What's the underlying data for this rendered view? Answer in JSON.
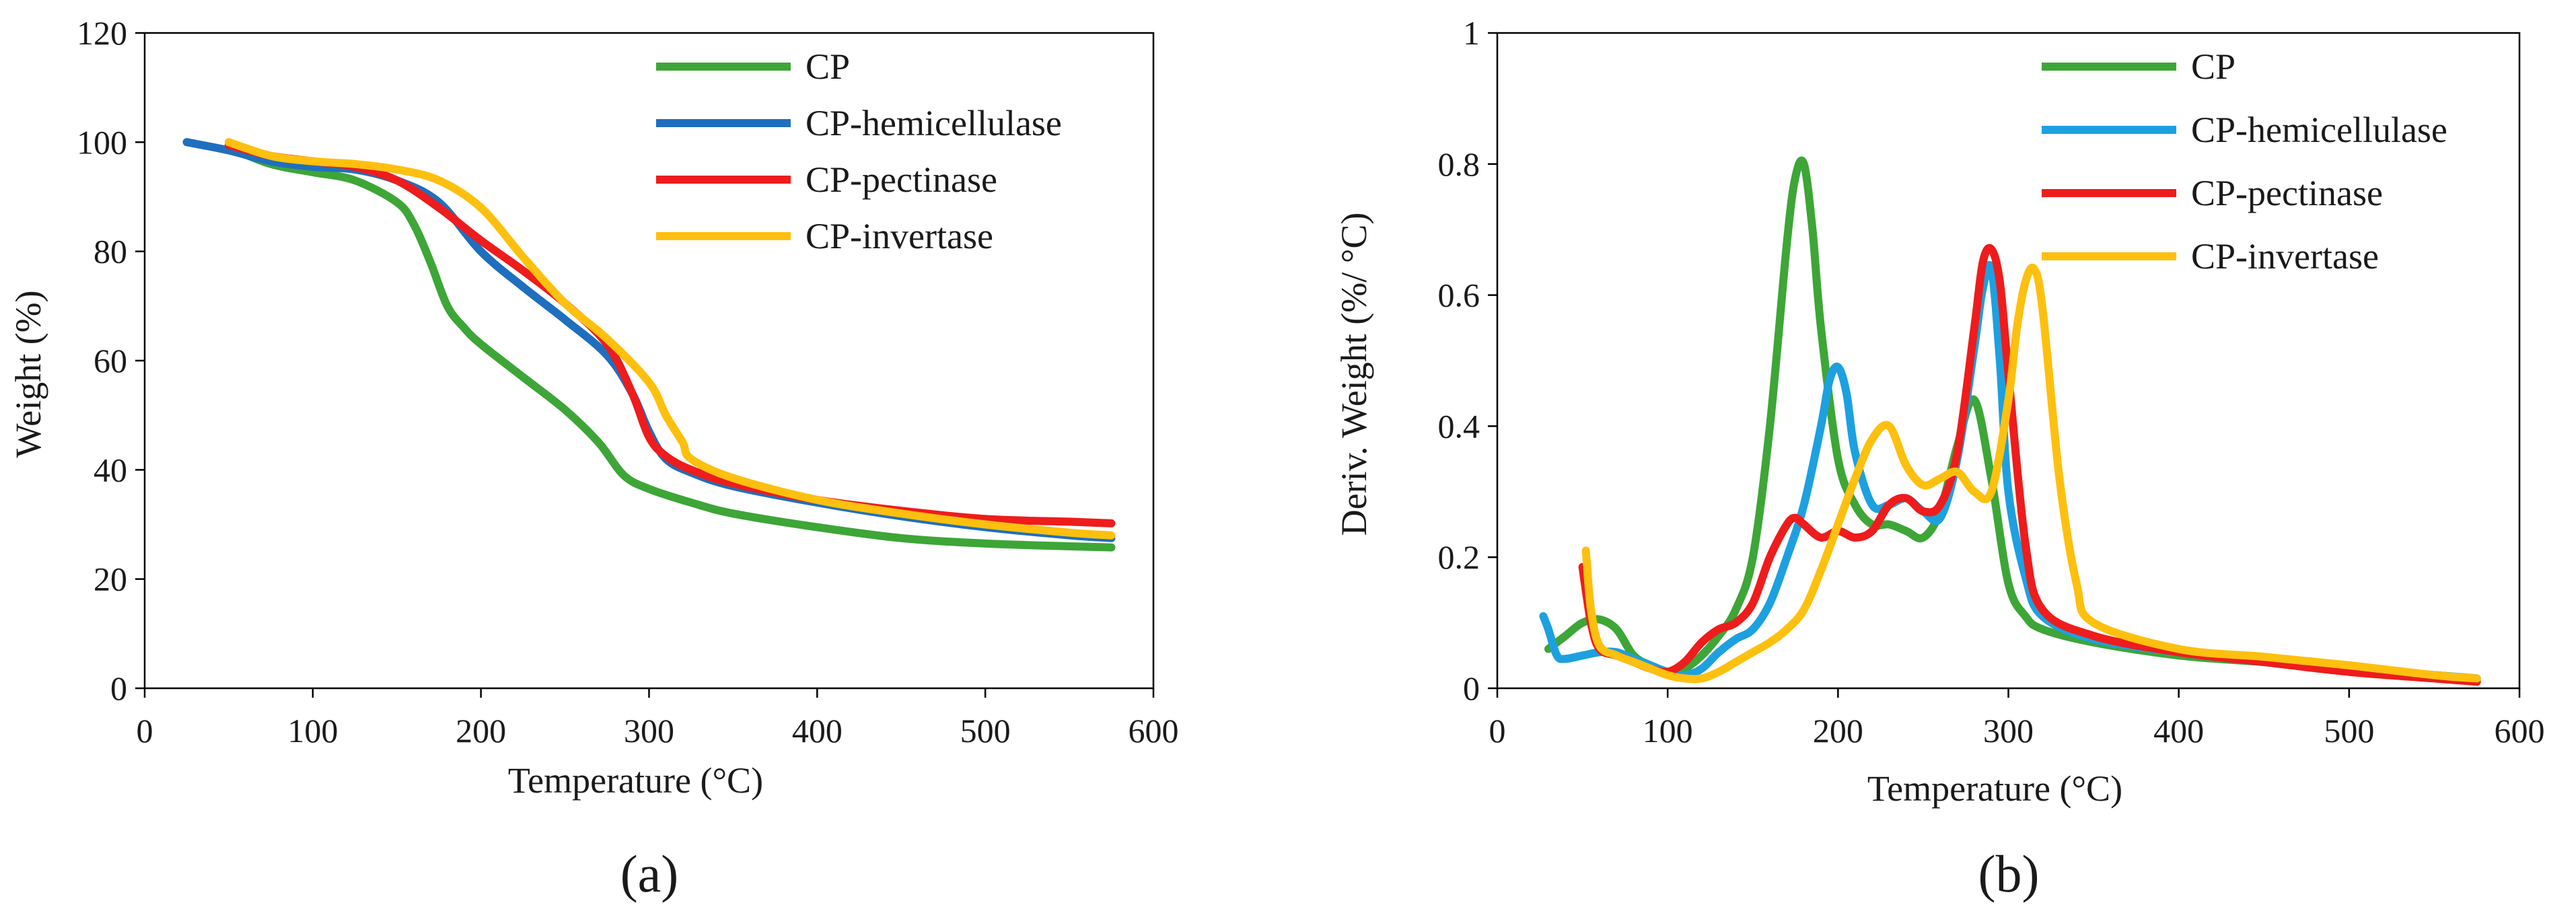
{
  "chart_data": [
    {
      "type": "line",
      "panel_label": "(a)",
      "title": "",
      "xlabel": "Temperature (°C)",
      "ylabel": "Weight (%)",
      "xlim": [
        0,
        600
      ],
      "ylim": [
        0,
        120
      ],
      "xticks": [
        0,
        100,
        200,
        300,
        400,
        500,
        600
      ],
      "yticks": [
        0,
        20,
        40,
        60,
        80,
        100,
        120
      ],
      "grid": false,
      "legend_position": "top-right",
      "series": [
        {
          "name": "CP",
          "color": "#3da637",
          "x": [
            50,
            75,
            100,
            125,
            150,
            160,
            170,
            180,
            190,
            200,
            225,
            250,
            270,
            285,
            300,
            325,
            350,
            400,
            450,
            500,
            550,
            575
          ],
          "y": [
            99,
            96,
            94.5,
            93,
            89,
            85,
            78,
            70,
            66,
            63,
            57,
            51,
            45,
            39,
            36.5,
            34,
            32,
            29.5,
            27.5,
            26.5,
            26,
            25.8
          ]
        },
        {
          "name": "CP-hemicellulase",
          "color": "#1f6fbf",
          "x": [
            25,
            50,
            75,
            100,
            125,
            150,
            175,
            200,
            225,
            250,
            275,
            290,
            300,
            310,
            325,
            350,
            400,
            450,
            500,
            550,
            575
          ],
          "y": [
            100,
            98.5,
            96.5,
            95.5,
            95,
            93,
            89,
            80,
            73.5,
            67.5,
            61,
            54,
            47,
            42,
            39.5,
            37,
            34,
            31.5,
            29.5,
            28,
            27.5
          ]
        },
        {
          "name": "CP-pectinase",
          "color": "#ee1c1c",
          "x": [
            50,
            75,
            100,
            125,
            150,
            175,
            200,
            225,
            250,
            275,
            290,
            300,
            310,
            325,
            350,
            400,
            450,
            500,
            550,
            575
          ],
          "y": [
            99.5,
            97.5,
            96.5,
            95.5,
            93,
            88,
            82,
            76.5,
            70.5,
            63,
            54,
            46,
            42.5,
            40,
            37.5,
            34.5,
            32.5,
            31,
            30.5,
            30.2
          ]
        },
        {
          "name": "CP-invertase",
          "color": "#fec00e",
          "x": [
            50,
            75,
            100,
            125,
            150,
            175,
            200,
            225,
            250,
            275,
            300,
            310,
            320,
            325,
            350,
            400,
            450,
            500,
            550,
            575
          ],
          "y": [
            100,
            97.5,
            96.5,
            96,
            95,
            93,
            88,
            79,
            70.5,
            64,
            56,
            50,
            45,
            42,
            38.5,
            34.5,
            32,
            30,
            28.5,
            28
          ]
        }
      ]
    },
    {
      "type": "line",
      "panel_label": "(b)",
      "title": "",
      "xlabel": "Temperature (°C)",
      "ylabel": "Deriv. Weight (%/ °C)",
      "xlim": [
        0,
        600
      ],
      "ylim": [
        0,
        1
      ],
      "xticks": [
        0,
        100,
        200,
        300,
        400,
        500,
        600
      ],
      "yticks": [
        0,
        0.2,
        0.4,
        0.6,
        0.8,
        1
      ],
      "ytick_labels": [
        "0",
        "0.2",
        "0.4",
        "0.6",
        "0.8",
        "1"
      ],
      "grid": false,
      "legend_position": "top-right",
      "series": [
        {
          "name": "CP",
          "color": "#3da637",
          "x": [
            30,
            40,
            50,
            60,
            70,
            80,
            90,
            100,
            110,
            120,
            130,
            140,
            150,
            160,
            170,
            175,
            180,
            185,
            190,
            200,
            210,
            220,
            230,
            240,
            250,
            260,
            270,
            280,
            290,
            300,
            310,
            320,
            350,
            400,
            450,
            500,
            550,
            575
          ],
          "y": [
            0.06,
            0.08,
            0.1,
            0.105,
            0.09,
            0.05,
            0.035,
            0.025,
            0.03,
            0.05,
            0.08,
            0.12,
            0.2,
            0.4,
            0.68,
            0.78,
            0.8,
            0.7,
            0.55,
            0.35,
            0.28,
            0.25,
            0.25,
            0.24,
            0.23,
            0.27,
            0.37,
            0.44,
            0.32,
            0.16,
            0.11,
            0.09,
            0.07,
            0.05,
            0.04,
            0.03,
            0.02,
            0.015
          ]
        },
        {
          "name": "CP-hemicellulase",
          "color": "#1da0e0",
          "x": [
            27,
            30,
            35,
            40,
            50,
            60,
            70,
            80,
            90,
            100,
            110,
            120,
            130,
            140,
            150,
            160,
            170,
            180,
            190,
            195,
            200,
            205,
            210,
            220,
            230,
            240,
            250,
            260,
            270,
            280,
            285,
            290,
            295,
            300,
            310,
            320,
            350,
            400,
            450,
            500,
            550,
            575
          ],
          "y": [
            0.11,
            0.09,
            0.05,
            0.045,
            0.05,
            0.055,
            0.055,
            0.045,
            0.035,
            0.025,
            0.02,
            0.03,
            0.055,
            0.075,
            0.09,
            0.13,
            0.2,
            0.28,
            0.4,
            0.47,
            0.49,
            0.45,
            0.36,
            0.28,
            0.28,
            0.29,
            0.27,
            0.26,
            0.35,
            0.52,
            0.61,
            0.64,
            0.5,
            0.3,
            0.17,
            0.11,
            0.075,
            0.055,
            0.04,
            0.03,
            0.02,
            0.015
          ]
        },
        {
          "name": "CP-pectinase",
          "color": "#ee1c1c",
          "x": [
            50,
            55,
            60,
            70,
            80,
            90,
            100,
            110,
            120,
            130,
            140,
            150,
            160,
            170,
            175,
            180,
            190,
            200,
            210,
            220,
            230,
            240,
            250,
            260,
            270,
            280,
            285,
            290,
            295,
            300,
            310,
            320,
            350,
            400,
            450,
            500,
            550,
            575
          ],
          "y": [
            0.185,
            0.1,
            0.06,
            0.05,
            0.04,
            0.03,
            0.025,
            0.04,
            0.07,
            0.09,
            0.1,
            0.13,
            0.2,
            0.25,
            0.26,
            0.25,
            0.23,
            0.24,
            0.23,
            0.24,
            0.28,
            0.29,
            0.27,
            0.28,
            0.36,
            0.55,
            0.65,
            0.67,
            0.62,
            0.48,
            0.22,
            0.12,
            0.08,
            0.055,
            0.04,
            0.025,
            0.015,
            0.01
          ]
        },
        {
          "name": "CP-invertase",
          "color": "#fec00e",
          "x": [
            52,
            55,
            60,
            70,
            80,
            90,
            100,
            110,
            120,
            130,
            140,
            150,
            160,
            170,
            180,
            190,
            200,
            210,
            220,
            230,
            240,
            250,
            260,
            270,
            280,
            290,
            300,
            305,
            310,
            315,
            320,
            330,
            340,
            350,
            400,
            450,
            500,
            550,
            575
          ],
          "y": [
            0.21,
            0.12,
            0.065,
            0.05,
            0.04,
            0.03,
            0.02,
            0.015,
            0.015,
            0.025,
            0.04,
            0.055,
            0.07,
            0.09,
            0.12,
            0.18,
            0.25,
            0.32,
            0.38,
            0.4,
            0.34,
            0.31,
            0.32,
            0.33,
            0.3,
            0.3,
            0.44,
            0.55,
            0.62,
            0.64,
            0.58,
            0.32,
            0.16,
            0.1,
            0.06,
            0.048,
            0.035,
            0.02,
            0.015
          ]
        }
      ]
    }
  ]
}
